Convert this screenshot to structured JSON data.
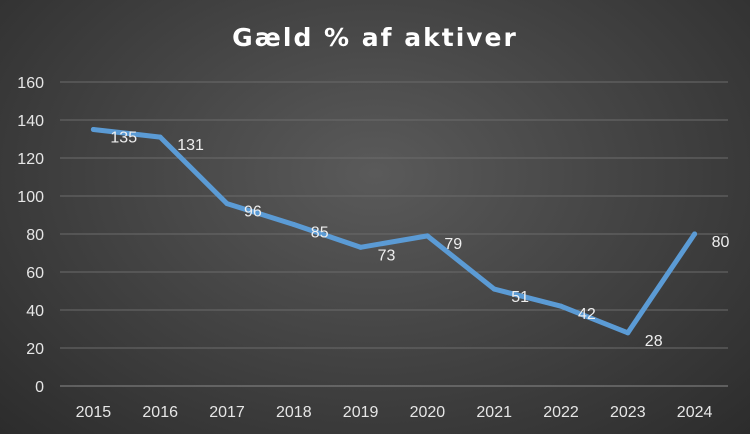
{
  "chart_data": {
    "type": "line",
    "title": "Gæld % af aktiver",
    "xlabel": "",
    "ylabel": "",
    "categories": [
      "2015",
      "2016",
      "2017",
      "2018",
      "2019",
      "2020",
      "2021",
      "2022",
      "2023",
      "2024"
    ],
    "series": [
      {
        "values": [
          135,
          131,
          96,
          85,
          73,
          79,
          51,
          42,
          28,
          80
        ]
      }
    ],
    "ylim": [
      0,
      160
    ],
    "yticks": [
      0,
      20,
      40,
      60,
      80,
      100,
      120,
      140,
      160
    ],
    "grid": true,
    "legend": "none",
    "line_color": "#5b9bd5"
  }
}
